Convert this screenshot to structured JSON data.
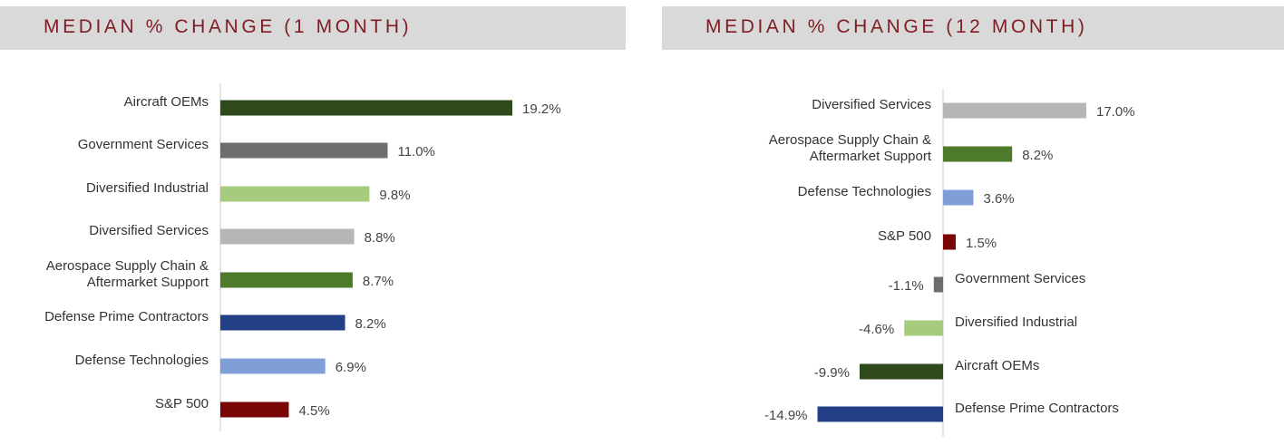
{
  "colors": {
    "title": "#7f1d25",
    "header_bg": "#d9d9d9",
    "Aircraft OEMs": "#2e4a1b",
    "Government Services": "#6d6d6d",
    "Diversified Industrial": "#a4cc7c",
    "Diversified Services": "#b6b6b6",
    "Aerospace Supply Chain & Aftermarket Support": "#4e7a2b",
    "Defense Prime Contractors": "#233f86",
    "Defense Technologies": "#809fd8",
    "S&P 500": "#7a0505"
  },
  "chart_data": [
    {
      "type": "bar",
      "orientation": "horizontal",
      "title": "MEDIAN % CHANGE (1 MONTH)",
      "categories": [
        "Aircraft OEMs",
        "Government Services",
        "Diversified Industrial",
        "Diversified Services",
        "Aerospace Supply Chain & Aftermarket Support",
        "Defense Prime Contractors",
        "Defense Technologies",
        "S&P 500"
      ],
      "values": [
        19.2,
        11.0,
        9.8,
        8.8,
        8.7,
        8.2,
        6.9,
        4.5
      ],
      "value_labels": [
        "19.2%",
        "11.0%",
        "9.8%",
        "8.8%",
        "8.7%",
        "8.2%",
        "6.9%",
        "4.5%"
      ],
      "xlim": [
        0,
        19.2
      ]
    },
    {
      "type": "bar",
      "orientation": "horizontal",
      "title": "MEDIAN % CHANGE (12 MONTH)",
      "categories": [
        "Diversified Services",
        "Aerospace Supply Chain & Aftermarket Support",
        "Defense Technologies",
        "S&P 500",
        "Government Services",
        "Diversified Industrial",
        "Aircraft OEMs",
        "Defense Prime Contractors"
      ],
      "values": [
        17.0,
        8.2,
        3.6,
        1.5,
        -1.1,
        -4.6,
        -9.9,
        -14.9
      ],
      "value_labels": [
        "17.0%",
        "8.2%",
        "3.6%",
        "1.5%",
        "-1.1%",
        "-4.6%",
        "-9.9%",
        "-14.9%"
      ],
      "xlim": [
        -14.9,
        17.0
      ]
    }
  ]
}
